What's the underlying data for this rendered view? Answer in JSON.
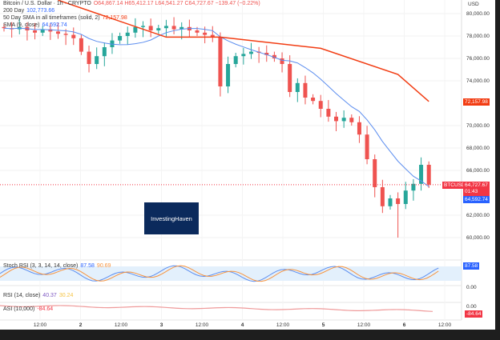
{
  "legend": {
    "title": "Bitcoin / U.S. Dollar · 1h · CRYPTO",
    "ohlc": "O64,867.14 H65,412.17 L64,541.27 C64,727.67 −139.47 (−0.22%)",
    "sma200_label": "200 Day",
    "sma200_value": "102,773.66",
    "sma50_label": "50 Day SMA in all timeframes (solid, 2)",
    "sma50_value": "72,157.98",
    "sma9_label": "SMA (9, close)",
    "sma9_value": "64,592.74"
  },
  "stoch": {
    "label": "Stoch RSI (3, 3, 14, 14, close)",
    "k": "87.58",
    "d": "90.69",
    "axis": "0.00"
  },
  "rsi": {
    "label": "RSI (14, close)",
    "v1": "40.37",
    "v2": "30.24"
  },
  "asi": {
    "label": "ASI (10,000)",
    "value": "-84.64",
    "axis": "0.00"
  },
  "price_tags": {
    "sma50": "72,157.98",
    "symbol": "BTCUSD",
    "last": "64,727.67",
    "countdown": "01:43",
    "sma9": "64,592.74",
    "stoch": "87.58"
  },
  "logo": "InvestingHaven",
  "colors": {
    "up": "#26a69a",
    "down": "#ef5350",
    "sma9": "#5b8def",
    "sma50": "#f23c12",
    "stochK": "#5b8def",
    "stochD": "#f7933d"
  },
  "chart_data": {
    "type": "candlestick",
    "currency": "USD",
    "yticks": [
      80000,
      78000,
      76000,
      74000,
      70000,
      68000,
      66000,
      62000,
      60000
    ],
    "ylim": [
      59000,
      81200
    ],
    "xticks": [
      "12:00",
      "2",
      "12:00",
      "3",
      "12:00",
      "4",
      "12:00",
      "5",
      "12:00",
      "6",
      "12:00"
    ],
    "closes": [
      78700,
      78600,
      78800,
      78500,
      78300,
      78600,
      78400,
      78200,
      78100,
      77800,
      76600,
      75500,
      76200,
      77000,
      77600,
      78000,
      78300,
      78800,
      78900,
      78500,
      78700,
      78900,
      78600,
      78800,
      78500,
      78300,
      78100,
      77900,
      73500,
      75500,
      76200,
      76400,
      76600,
      76500,
      76300,
      76000,
      75500,
      73000,
      73800,
      72500,
      72200,
      71500,
      70800,
      70400,
      70700,
      70300,
      69200,
      67000,
      64500,
      62800,
      63500,
      63000,
      64200,
      64800,
      66500,
      64727.67
    ],
    "sma50": [
      [
        7,
        81200
      ],
      [
        21,
        77900
      ],
      [
        28,
        77900
      ],
      [
        41,
        76900
      ],
      [
        51,
        74570
      ],
      [
        55,
        72158
      ]
    ]
  }
}
